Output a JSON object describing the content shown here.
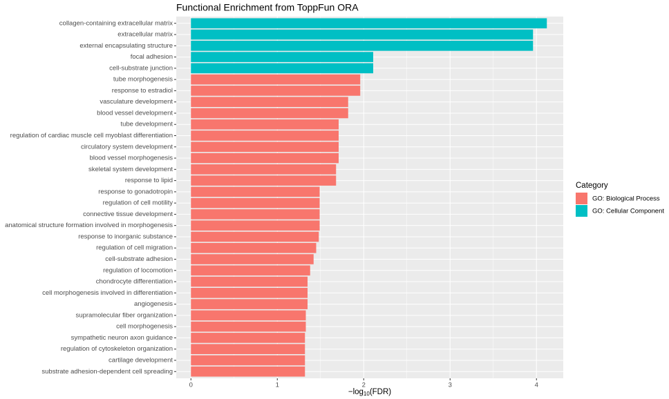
{
  "chart_data": {
    "type": "barh",
    "title": "Functional Enrichment from ToppFun ORA",
    "xlabel": [
      "−log",
      "10",
      "(FDR)"
    ],
    "legend_title": "Category",
    "categories": [
      "collagen-containing extracellular matrix",
      "extracellular matrix",
      "external encapsulating structure",
      "focal adhesion",
      "cell-substrate junction",
      "tube morphogenesis",
      "response to estradiol",
      "vasculature development",
      "blood vessel development",
      "tube development",
      "regulation of cardiac muscle cell myoblast differentiation",
      "circulatory system development",
      "blood vessel morphogenesis",
      "skeletal system development",
      "response to lipid",
      "response to gonadotropin",
      "regulation of cell motility",
      "connective tissue development",
      "anatomical structure formation involved in morphogenesis",
      "response to inorganic substance",
      "regulation of cell migration",
      "cell-substrate adhesion",
      "regulation of locomotion",
      "chondrocyte differentiation",
      "cell morphogenesis involved in differentiation",
      "angiogenesis",
      "supramolecular fiber organization",
      "cell morphogenesis",
      "sympathetic neuron axon guidance",
      "regulation of cytoskeleton organization",
      "cartilage development",
      "substrate adhesion-dependent cell spreading"
    ],
    "series": [
      {
        "name": "GO: Biological Process",
        "color": "#F8766D",
        "values": [
          null,
          null,
          null,
          null,
          null,
          1.96,
          1.96,
          1.82,
          1.82,
          1.71,
          1.71,
          1.71,
          1.71,
          1.68,
          1.68,
          1.49,
          1.49,
          1.49,
          1.49,
          1.48,
          1.45,
          1.42,
          1.38,
          1.35,
          1.35,
          1.35,
          1.33,
          1.33,
          1.32,
          1.32,
          1.32,
          1.32
        ]
      },
      {
        "name": "GO: Cellular Component",
        "color": "#00BFC4",
        "values": [
          4.12,
          3.96,
          3.96,
          2.11,
          2.11,
          null,
          null,
          null,
          null,
          null,
          null,
          null,
          null,
          null,
          null,
          null,
          null,
          null,
          null,
          null,
          null,
          null,
          null,
          null,
          null,
          null,
          null,
          null,
          null,
          null,
          null,
          null
        ]
      }
    ],
    "xlim": [
      -0.17,
      4.31
    ],
    "xticks": [
      0,
      1,
      2,
      3,
      4
    ],
    "grid": true,
    "legend": "right"
  }
}
